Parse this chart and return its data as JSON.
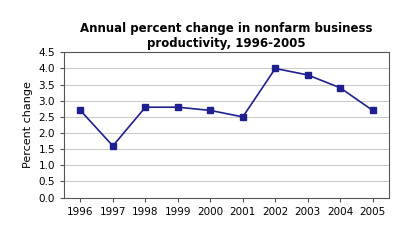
{
  "title": "Annual percent change in nonfarm business\nproductivity, 1996-2005",
  "xlabel": "",
  "ylabel": "Percent change",
  "years": [
    1996,
    1997,
    1998,
    1999,
    2000,
    2001,
    2002,
    2003,
    2004,
    2005
  ],
  "values": [
    2.7,
    1.6,
    2.8,
    2.8,
    2.7,
    2.5,
    4.0,
    3.8,
    3.4,
    2.7
  ],
  "ylim": [
    0.0,
    4.5
  ],
  "yticks": [
    0.0,
    0.5,
    1.0,
    1.5,
    2.0,
    2.5,
    3.0,
    3.5,
    4.0,
    4.5
  ],
  "line_color": "#1F1F8F",
  "marker": "s",
  "marker_color": "#1F1F8F",
  "marker_size": 4,
  "line_width": 1.2,
  "background_color": "#ffffff",
  "plot_bg_color": "#ffffff",
  "grid_color": "#c0c0c0",
  "title_fontsize": 8.5,
  "axis_label_fontsize": 8,
  "tick_fontsize": 7.5
}
